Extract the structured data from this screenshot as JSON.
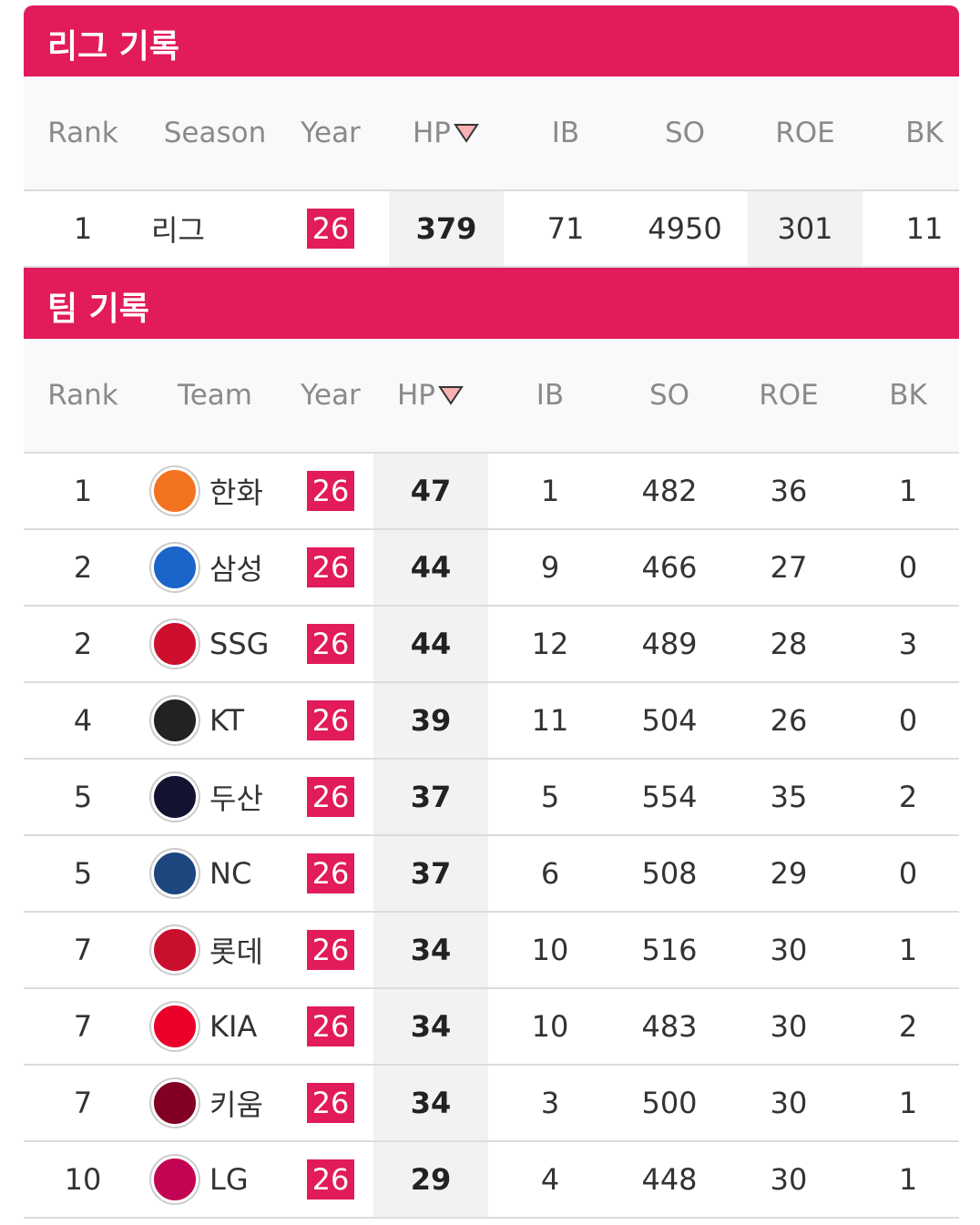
{
  "league": {
    "title": "리그 기록",
    "headers": [
      "Rank",
      "Season",
      "Year",
      "HP",
      "IB",
      "SO",
      "ROE",
      "BK"
    ],
    "rows": [
      [
        "1",
        "리그",
        "26",
        "379",
        "71",
        "4950",
        "301",
        "11"
      ]
    ]
  },
  "team": {
    "title": "팀 기록",
    "headers": [
      "Rank",
      "Team",
      "Year",
      "HP",
      "IB",
      "SO",
      "ROE",
      "BK"
    ],
    "rows": [
      [
        "1",
        "한화",
        "26",
        "47",
        "1",
        "482",
        "36",
        "1"
      ],
      [
        "2",
        "삼성",
        "26",
        "44",
        "9",
        "466",
        "27",
        "0"
      ],
      [
        "2",
        "SSG",
        "26",
        "44",
        "12",
        "489",
        "28",
        "3"
      ],
      [
        "4",
        "KT",
        "26",
        "39",
        "11",
        "504",
        "26",
        "0"
      ],
      [
        "5",
        "두산",
        "26",
        "37",
        "5",
        "554",
        "35",
        "2"
      ],
      [
        "5",
        "NC",
        "26",
        "37",
        "6",
        "508",
        "29",
        "0"
      ],
      [
        "7",
        "롯데",
        "26",
        "34",
        "10",
        "516",
        "30",
        "1"
      ],
      [
        "7",
        "KIA",
        "26",
        "34",
        "10",
        "483",
        "30",
        "2"
      ],
      [
        "7",
        "키움",
        "26",
        "34",
        "3",
        "500",
        "30",
        "1"
      ],
      [
        "10",
        "LG",
        "26",
        "29",
        "4",
        "448",
        "30",
        "1"
      ]
    ]
  }
}
